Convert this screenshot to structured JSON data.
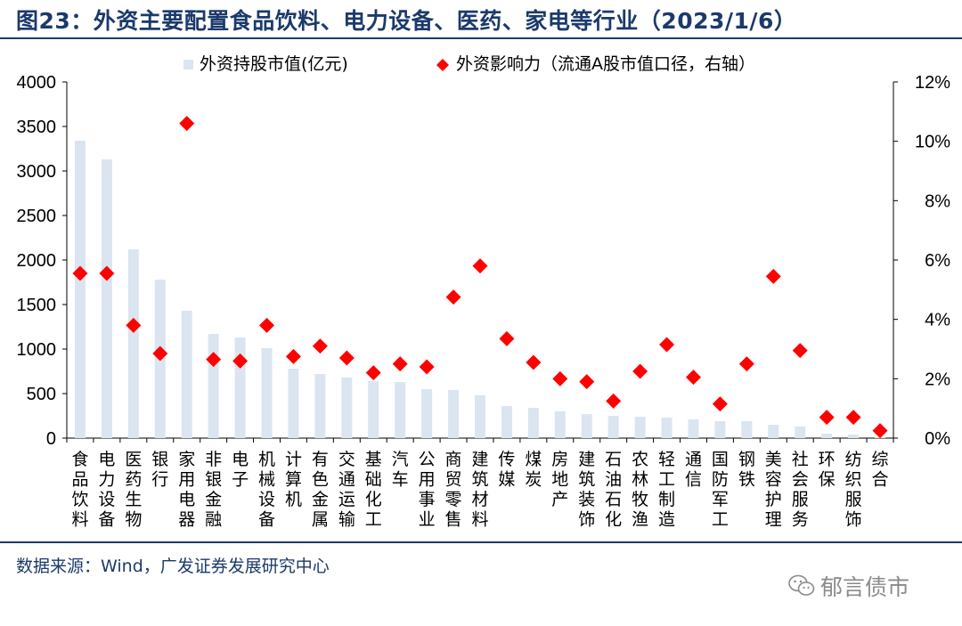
{
  "header": {
    "title": "图23：外资主要配置食品饮料、电力设备、医药、家电等行业（2023/1/6）"
  },
  "footer": {
    "source": "数据来源：Wind，广发证券发展研究中心",
    "watermark": "郁言债市"
  },
  "colors": {
    "bar": "#dbe5f1",
    "marker": "#ff0000",
    "title": "#1b3a6b",
    "rule": "#1b3a6b",
    "axis": "#000000"
  },
  "chart_data": {
    "type": "bar",
    "title": "外资主要配置食品饮料、电力设备、医药、家电等行业（2023/1/6）",
    "categories": [
      "食品饮料",
      "电力设备",
      "医药生物",
      "银行",
      "家用电器",
      "非银金融",
      "电子",
      "机械设备",
      "计算机",
      "有色金属",
      "交通运输",
      "基础化工",
      "汽车",
      "公用事业",
      "商贸零售",
      "建筑材料",
      "传媒",
      "煤炭",
      "房地产",
      "建筑装饰",
      "石油石化",
      "农林牧渔",
      "轻工制造",
      "通信",
      "国防军工",
      "钢铁",
      "美容护理",
      "社会服务",
      "环保",
      "纺织服饰",
      "综合"
    ],
    "series": [
      {
        "name": "外资持股市值(亿元)",
        "type": "bar",
        "axis": "left",
        "values": [
          3340,
          3130,
          2120,
          1780,
          1430,
          1170,
          1130,
          1010,
          780,
          720,
          680,
          640,
          630,
          550,
          540,
          480,
          360,
          340,
          300,
          270,
          250,
          240,
          230,
          210,
          190,
          190,
          150,
          130,
          50,
          40,
          10
        ]
      },
      {
        "name": "外资影响力（流通A股市值口径，右轴）",
        "type": "scatter",
        "axis": "right",
        "unit": "%",
        "values": [
          5.55,
          5.55,
          3.8,
          2.85,
          10.6,
          2.65,
          2.6,
          3.8,
          2.75,
          3.1,
          2.7,
          2.2,
          2.5,
          2.4,
          4.75,
          5.8,
          3.35,
          2.55,
          2.0,
          1.9,
          1.25,
          2.25,
          3.15,
          2.05,
          1.15,
          2.5,
          5.45,
          2.95,
          0.7,
          0.7,
          0.25
        ]
      }
    ],
    "left_axis": {
      "min": 0,
      "max": 4000,
      "ticks": [
        "0",
        "500",
        "1000",
        "1500",
        "2000",
        "2500",
        "3000",
        "3500",
        "4000"
      ]
    },
    "right_axis": {
      "min": 0,
      "max": 12,
      "ticks": [
        "0%",
        "2%",
        "4%",
        "6%",
        "8%",
        "10%",
        "12%"
      ]
    },
    "legend_position": "top",
    "grid": false
  }
}
